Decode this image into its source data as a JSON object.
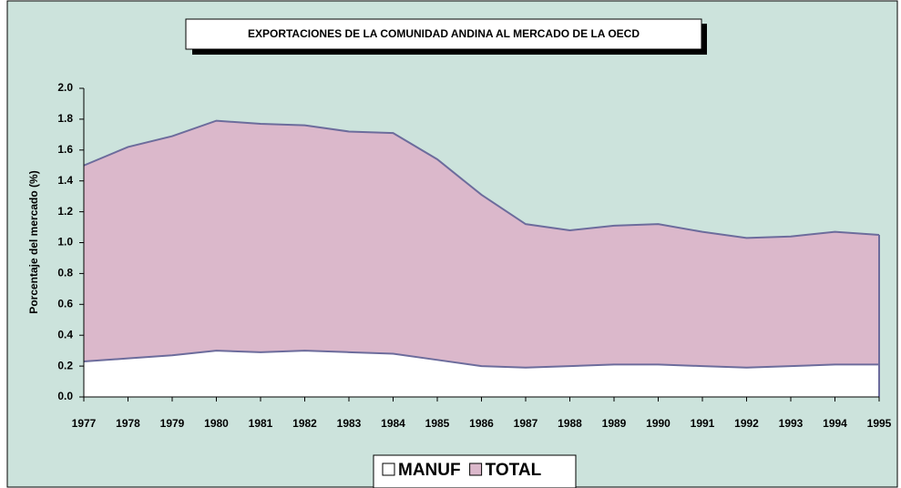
{
  "chart_data": {
    "type": "area",
    "title": "EXPORTACIONES DE LA COMUNIDAD ANDINA AL MERCADO DE LA OECD",
    "y_label": "Porcentaje del mercado (%)",
    "categories": [
      "1977",
      "1978",
      "1979",
      "1980",
      "1981",
      "1982",
      "1983",
      "1984",
      "1985",
      "1986",
      "1987",
      "1988",
      "1989",
      "1990",
      "1991",
      "1992",
      "1993",
      "1994",
      "1995"
    ],
    "series": [
      {
        "name": "MANUF",
        "color": "#ffffff",
        "values": [
          0.23,
          0.25,
          0.27,
          0.3,
          0.29,
          0.3,
          0.29,
          0.28,
          0.24,
          0.2,
          0.19,
          0.2,
          0.21,
          0.21,
          0.2,
          0.19,
          0.2,
          0.21,
          0.21
        ]
      },
      {
        "name": "TOTAL",
        "color": "#dbb8cb",
        "values": [
          1.5,
          1.62,
          1.69,
          1.79,
          1.77,
          1.76,
          1.72,
          1.71,
          1.54,
          1.31,
          1.12,
          1.08,
          1.11,
          1.12,
          1.07,
          1.03,
          1.04,
          1.07,
          1.05
        ]
      }
    ],
    "line_color": "#6c6c9c",
    "ylim": [
      0,
      2
    ],
    "yticks": [
      {
        "value": 0,
        "label": "0.0"
      },
      {
        "value": 0.2,
        "label": "0.2"
      },
      {
        "value": 0.4,
        "label": "0.4"
      },
      {
        "value": 0.6,
        "label": "0.6"
      },
      {
        "value": 0.8,
        "label": "0.8"
      },
      {
        "value": 1,
        "label": "1.0"
      },
      {
        "value": 1.2,
        "label": "1.2"
      },
      {
        "value": 1.4,
        "label": "1.4"
      },
      {
        "value": 1.6,
        "label": "1.6"
      },
      {
        "value": 1.8,
        "label": "1.8"
      },
      {
        "value": 2,
        "label": "2.0"
      }
    ],
    "legend": "bottom"
  }
}
